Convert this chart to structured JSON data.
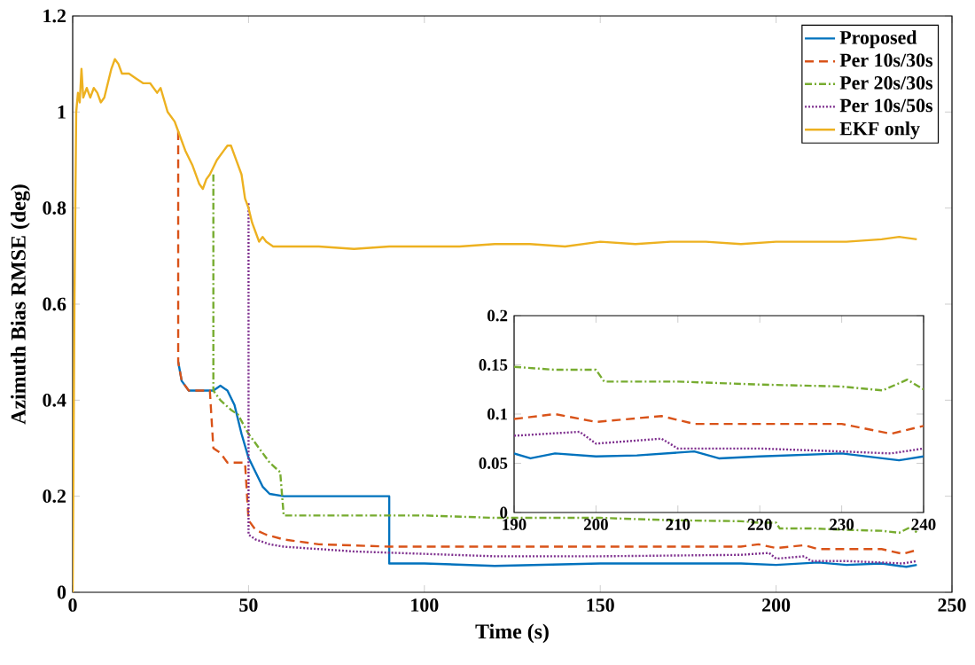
{
  "chart_data": [
    {
      "type": "line",
      "xlabel": "Time (s)",
      "ylabel": "Azimuth Bias RMSE (deg)",
      "xlim": [
        0,
        250
      ],
      "ylim": [
        0,
        1.2
      ],
      "xticks": [
        0,
        50,
        100,
        150,
        200,
        250
      ],
      "yticks": [
        0,
        0.2,
        0.4,
        0.6,
        0.8,
        1,
        1.2
      ],
      "legend": "top right",
      "marker": "none",
      "series": [
        {
          "name": "Proposed",
          "color": "#0072bd",
          "line_style": "solid",
          "x": [
            30,
            31,
            33,
            36,
            40,
            42,
            44,
            46,
            48,
            50,
            52,
            54,
            56,
            60,
            70,
            80,
            90,
            90,
            100,
            120,
            150,
            190,
            200,
            212,
            220,
            230,
            237,
            240
          ],
          "values": [
            0.48,
            0.44,
            0.42,
            0.42,
            0.42,
            0.43,
            0.42,
            0.39,
            0.33,
            0.28,
            0.25,
            0.22,
            0.205,
            0.2,
            0.2,
            0.2,
            0.2,
            0.06,
            0.06,
            0.055,
            0.06,
            0.06,
            0.057,
            0.062,
            0.057,
            0.06,
            0.053,
            0.057
          ]
        },
        {
          "name": "Per 10s/30s",
          "color": "#d95319",
          "line_style": "dashed",
          "x": [
            30,
            30,
            31,
            33,
            36,
            39,
            40,
            42,
            44,
            49,
            50,
            52,
            55,
            60,
            70,
            90,
            120,
            150,
            190,
            195,
            200,
            208,
            212,
            220,
            230,
            236,
            240
          ],
          "values": [
            0.96,
            0.48,
            0.44,
            0.42,
            0.42,
            0.42,
            0.3,
            0.29,
            0.27,
            0.27,
            0.15,
            0.13,
            0.12,
            0.11,
            0.1,
            0.095,
            0.095,
            0.095,
            0.095,
            0.1,
            0.092,
            0.098,
            0.09,
            0.09,
            0.09,
            0.08,
            0.088
          ]
        },
        {
          "name": "Per 20s/30s",
          "color": "#77ac30",
          "line_style": "dashdot",
          "x": [
            40,
            40,
            42,
            45,
            47,
            50,
            53,
            56,
            59,
            60,
            80,
            100,
            120,
            150,
            170,
            190,
            195,
            200,
            201,
            210,
            220,
            230,
            235,
            238,
            240
          ],
          "values": [
            0.87,
            0.42,
            0.4,
            0.38,
            0.37,
            0.33,
            0.3,
            0.27,
            0.25,
            0.16,
            0.16,
            0.16,
            0.155,
            0.155,
            0.15,
            0.148,
            0.145,
            0.145,
            0.133,
            0.133,
            0.13,
            0.128,
            0.124,
            0.135,
            0.125
          ]
        },
        {
          "name": "Per 10s/50s",
          "color": "#7e2f8e",
          "line_style": "dotted",
          "x": [
            50,
            50,
            52,
            56,
            60,
            70,
            80,
            100,
            120,
            150,
            190,
            198,
            200,
            208,
            210,
            220,
            230,
            236,
            240
          ],
          "values": [
            0.81,
            0.12,
            0.11,
            0.1,
            0.095,
            0.09,
            0.085,
            0.08,
            0.075,
            0.075,
            0.078,
            0.082,
            0.07,
            0.075,
            0.065,
            0.065,
            0.062,
            0.06,
            0.065
          ]
        },
        {
          "name": "EKF only",
          "color": "#edb120",
          "line_style": "solid",
          "x": [
            0,
            0.5,
            1,
            1.5,
            2,
            2.5,
            3,
            4,
            5,
            6,
            7,
            8,
            9,
            10,
            11,
            12,
            13,
            14,
            16,
            18,
            20,
            22,
            24,
            25,
            27,
            29,
            30,
            32,
            34,
            36,
            37,
            38,
            39,
            41,
            43,
            44,
            45,
            46,
            48,
            49,
            50,
            51,
            52,
            53,
            54,
            55,
            57,
            60,
            70,
            80,
            90,
            100,
            110,
            120,
            130,
            140,
            150,
            160,
            170,
            180,
            190,
            200,
            210,
            220,
            230,
            235,
            240
          ],
          "values": [
            0,
            0.6,
            1.0,
            1.04,
            1.02,
            1.09,
            1.03,
            1.05,
            1.03,
            1.05,
            1.04,
            1.02,
            1.03,
            1.06,
            1.09,
            1.11,
            1.1,
            1.08,
            1.08,
            1.07,
            1.06,
            1.06,
            1.04,
            1.05,
            1.0,
            0.98,
            0.96,
            0.92,
            0.89,
            0.85,
            0.84,
            0.86,
            0.87,
            0.9,
            0.92,
            0.93,
            0.93,
            0.91,
            0.87,
            0.82,
            0.8,
            0.77,
            0.75,
            0.73,
            0.74,
            0.73,
            0.72,
            0.72,
            0.72,
            0.715,
            0.72,
            0.72,
            0.72,
            0.725,
            0.725,
            0.72,
            0.73,
            0.725,
            0.73,
            0.73,
            0.725,
            0.73,
            0.73,
            0.73,
            0.735,
            0.74,
            0.735
          ]
        }
      ]
    },
    {
      "type": "line",
      "xlim": [
        190,
        240
      ],
      "ylim": [
        0,
        0.2
      ],
      "xticks": [
        190,
        200,
        210,
        220,
        230,
        240
      ],
      "yticks": [
        0,
        0.05,
        0.1,
        0.15,
        0.2
      ],
      "marker": "none",
      "series": [
        {
          "color": "#0072bd",
          "line_style": "solid",
          "x": [
            190,
            192,
            195,
            200,
            205,
            212,
            215,
            220,
            230,
            237,
            240
          ],
          "values": [
            0.06,
            0.055,
            0.06,
            0.057,
            0.058,
            0.062,
            0.055,
            0.057,
            0.06,
            0.053,
            0.057
          ]
        },
        {
          "color": "#d95319",
          "line_style": "dashed",
          "x": [
            190,
            195,
            200,
            208,
            212,
            220,
            230,
            236,
            240
          ],
          "values": [
            0.095,
            0.1,
            0.092,
            0.098,
            0.09,
            0.09,
            0.09,
            0.08,
            0.088
          ]
        },
        {
          "color": "#77ac30",
          "line_style": "dashdot",
          "x": [
            190,
            195,
            200,
            201,
            210,
            220,
            230,
            235,
            238,
            240
          ],
          "values": [
            0.148,
            0.145,
            0.145,
            0.133,
            0.133,
            0.13,
            0.128,
            0.124,
            0.135,
            0.125
          ]
        },
        {
          "color": "#7e2f8e",
          "line_style": "dotted",
          "x": [
            190,
            198,
            200,
            208,
            210,
            220,
            230,
            236,
            240
          ],
          "values": [
            0.078,
            0.082,
            0.07,
            0.075,
            0.065,
            0.065,
            0.062,
            0.06,
            0.065
          ]
        }
      ]
    }
  ]
}
